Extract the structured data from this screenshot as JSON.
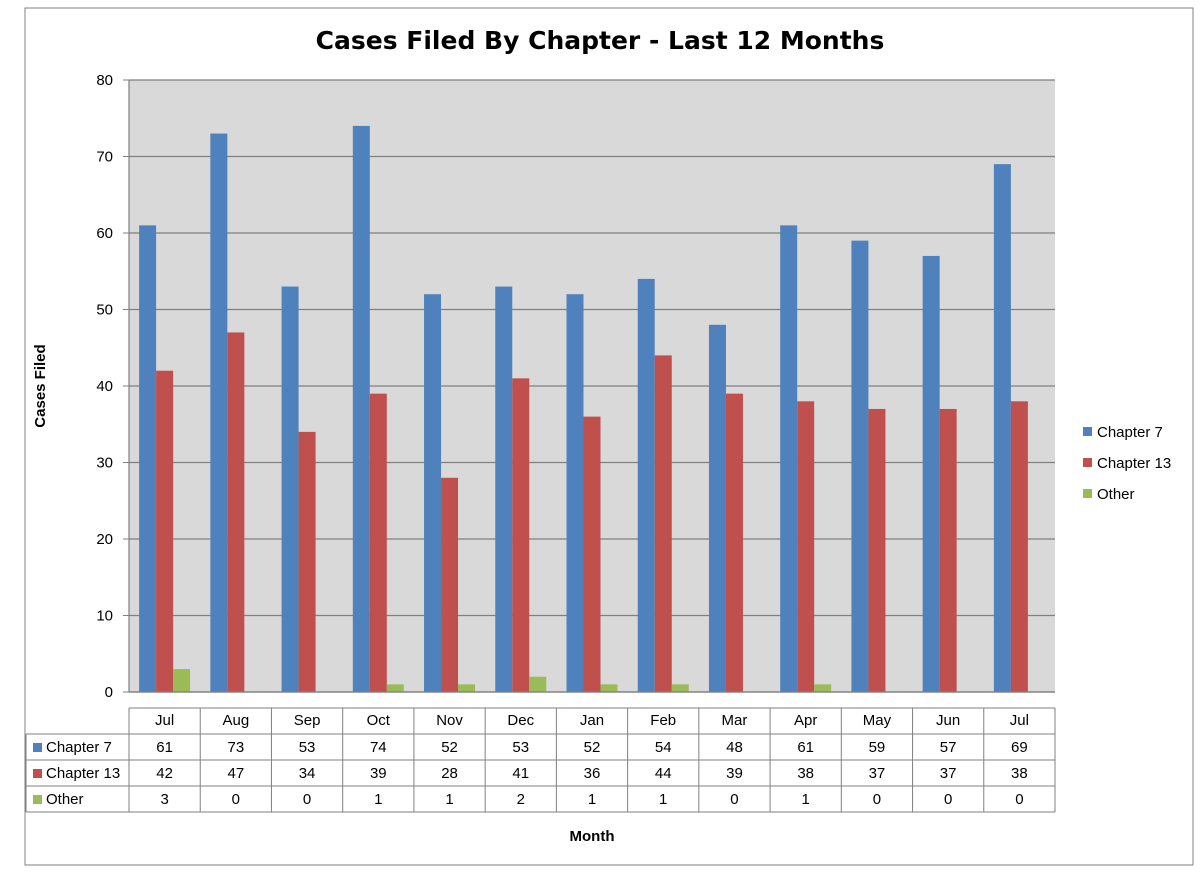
{
  "chart_data": {
    "type": "bar",
    "title": "Cases Filed By Chapter - Last 12 Months",
    "xlabel": "Month",
    "ylabel": "Cases Filed",
    "ylim": [
      0,
      80
    ],
    "yticks": [
      0,
      10,
      20,
      30,
      40,
      50,
      60,
      70,
      80
    ],
    "grid": true,
    "legend_position": "right",
    "categories": [
      "Jul",
      "Aug",
      "Sep",
      "Oct",
      "Nov",
      "Dec",
      "Jan",
      "Feb",
      "Mar",
      "Apr",
      "May",
      "Jun",
      "Jul"
    ],
    "series": [
      {
        "name": "Chapter 7",
        "color": "#4F81BD",
        "values": [
          61,
          73,
          53,
          74,
          52,
          53,
          52,
          54,
          48,
          61,
          59,
          57,
          69
        ]
      },
      {
        "name": "Chapter 13",
        "color": "#C0504D",
        "values": [
          42,
          47,
          34,
          39,
          28,
          41,
          36,
          44,
          39,
          38,
          37,
          37,
          38
        ]
      },
      {
        "name": "Other",
        "color": "#9BBB59",
        "values": [
          3,
          0,
          0,
          1,
          1,
          2,
          1,
          1,
          0,
          1,
          0,
          0,
          0
        ]
      }
    ],
    "data_table": true,
    "plot_background": "#D9D9D9"
  }
}
